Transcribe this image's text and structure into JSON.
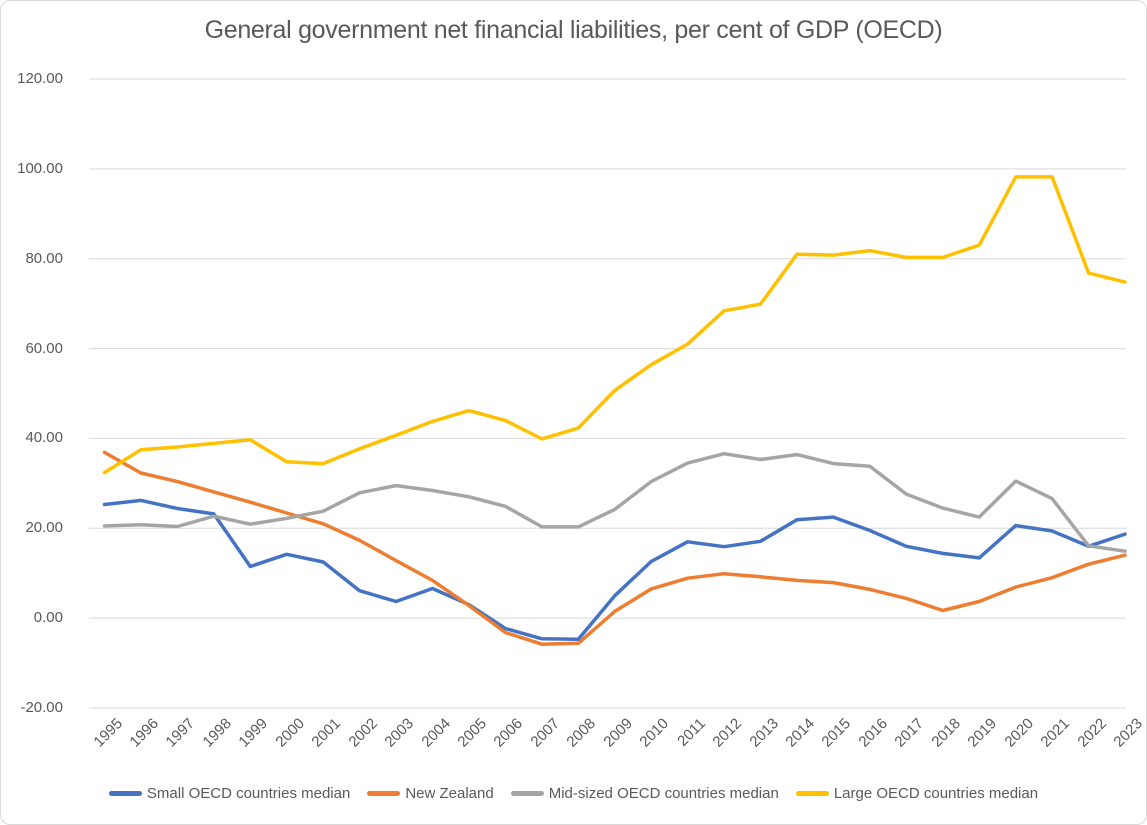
{
  "title": "General government net financial liabilities, per cent of GDP (OECD)",
  "colors": {
    "gridline": "#D9D9D9",
    "axis_text": "#595959",
    "title_text": "#595959",
    "background": "#FFFFFF"
  },
  "chart_data": {
    "type": "line",
    "title": "General government net financial liabilities, per cent of GDP (OECD)",
    "xlabel": "",
    "ylabel": "",
    "grid": "horizontal",
    "legend_position": "bottom",
    "ylim": [
      -20,
      120
    ],
    "yticks": [
      120,
      100,
      80,
      60,
      40,
      20,
      0,
      -20
    ],
    "ytick_labels": [
      "120.00",
      "100.00",
      "80.00",
      "60.00",
      "40.00",
      "20.00",
      "0.00",
      "-20.00"
    ],
    "x": [
      1995,
      1996,
      1997,
      1998,
      1999,
      2000,
      2001,
      2002,
      2003,
      2004,
      2005,
      2006,
      2007,
      2008,
      2009,
      2010,
      2011,
      2012,
      2013,
      2014,
      2015,
      2016,
      2017,
      2018,
      2019,
      2020,
      2021,
      2022,
      2023
    ],
    "series": [
      {
        "name": "Small OECD countries median",
        "color": "#4472C4",
        "values": [
          25.3,
          26.2,
          24.4,
          23.2,
          11.5,
          14.2,
          12.5,
          6.1,
          3.7,
          6.6,
          3.0,
          -2.3,
          -4.6,
          -4.7,
          5.0,
          12.6,
          17.0,
          15.9,
          17.1,
          21.9,
          22.5,
          19.5,
          16.0,
          14.4,
          13.4,
          20.6,
          19.4,
          16.0,
          18.7
        ]
      },
      {
        "name": "New Zealand",
        "color": "#ED7D31",
        "values": [
          36.9,
          32.3,
          30.4,
          28.1,
          25.8,
          23.4,
          21.0,
          17.3,
          12.8,
          8.4,
          2.8,
          -3.2,
          -5.8,
          -5.6,
          1.5,
          6.5,
          8.9,
          9.9,
          9.2,
          8.4,
          7.9,
          6.4,
          4.4,
          1.7,
          3.7,
          6.9,
          9.0,
          12.0,
          14.0
        ]
      },
      {
        "name": "Mid-sized OECD countries median",
        "color": "#A5A5A5",
        "values": [
          20.5,
          20.8,
          20.4,
          22.7,
          20.9,
          22.2,
          23.8,
          27.9,
          29.5,
          28.4,
          27.0,
          24.9,
          20.3,
          20.3,
          24.2,
          30.4,
          34.5,
          36.6,
          35.3,
          36.4,
          34.4,
          33.8,
          27.6,
          24.5,
          22.5,
          30.5,
          26.6,
          16.1,
          14.9
        ]
      },
      {
        "name": "Large OECD countries median",
        "color": "#FFC000",
        "values": [
          32.4,
          37.5,
          38.1,
          38.9,
          39.7,
          34.8,
          34.4,
          37.7,
          40.7,
          43.8,
          46.2,
          44.0,
          39.9,
          42.3,
          50.7,
          56.4,
          61.0,
          68.4,
          69.9,
          81.0,
          80.8,
          81.8,
          80.3,
          80.3,
          83.0,
          98.2,
          98.2,
          76.8,
          74.8
        ]
      }
    ]
  }
}
